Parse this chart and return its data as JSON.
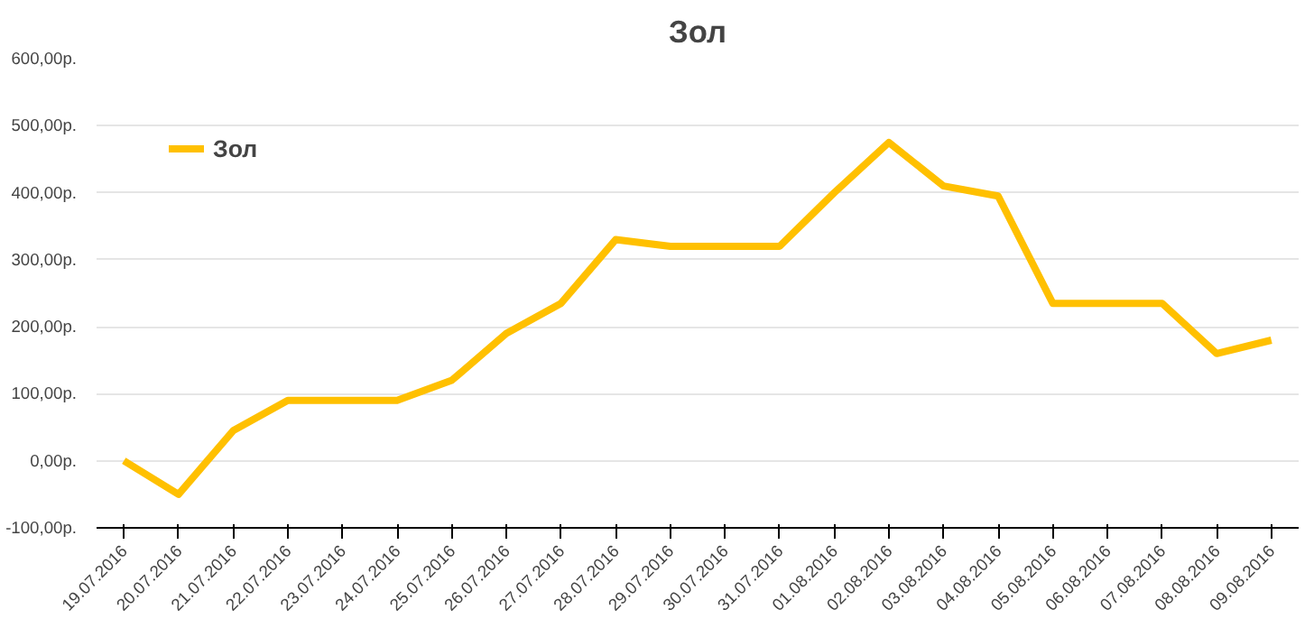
{
  "chart_data": {
    "type": "line",
    "title": "Зол",
    "categories": [
      "19.07.2016",
      "20.07.2016",
      "21.07.2016",
      "22.07.2016",
      "23.07.2016",
      "24.07.2016",
      "25.07.2016",
      "26.07.2016",
      "27.07.2016",
      "28.07.2016",
      "29.07.2016",
      "30.07.2016",
      "31.07.2016",
      "01.08.2016",
      "02.08.2016",
      "03.08.2016",
      "04.08.2016",
      "05.08.2016",
      "06.08.2016",
      "07.08.2016",
      "08.08.2016",
      "09.08.2016"
    ],
    "series": [
      {
        "name": "Зол",
        "color": "#ffc000",
        "values": [
          0,
          -50,
          45,
          90,
          90,
          90,
          120,
          190,
          235,
          330,
          320,
          320,
          320,
          400,
          475,
          410,
          395,
          235,
          235,
          235,
          160,
          180
        ]
      }
    ],
    "ylim": [
      -100,
      600
    ],
    "yticks": [
      {
        "value": -100,
        "label": "-100,00р."
      },
      {
        "value": 0,
        "label": "0,00р."
      },
      {
        "value": 100,
        "label": "100,00р."
      },
      {
        "value": 200,
        "label": "200,00р."
      },
      {
        "value": 300,
        "label": "300,00р."
      },
      {
        "value": 400,
        "label": "400,00р."
      },
      {
        "value": 500,
        "label": "500,00р."
      },
      {
        "value": 600,
        "label": "600,00р."
      }
    ],
    "grid": "y",
    "legend": "top left",
    "marker": "none",
    "line_style": "solid"
  }
}
